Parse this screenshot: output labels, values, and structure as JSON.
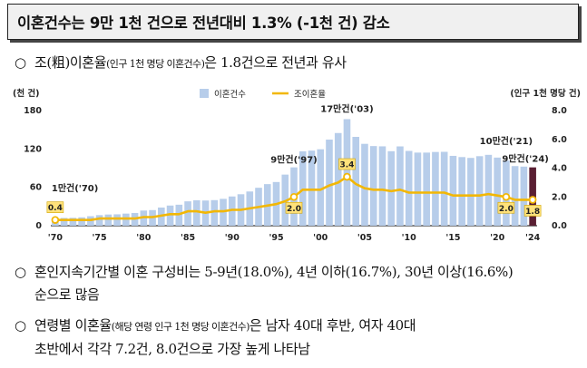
{
  "header": {
    "title": "이혼건수는 9만 1천 건으로 전년대비 1.3% (-1천 건) 감소"
  },
  "bullets": {
    "b1": {
      "marker": "○",
      "pre": "조(粗)이혼율",
      "small": "(인구 1천 명당 이혼건수)",
      "post": "은 1.8건으로 전년과 유사"
    },
    "b2": {
      "marker": "○",
      "line1": "혼인지속기간별 이혼 구성비는 5-9년(18.0%), 4년 이하(16.7%), 30년 이상(16.6%)",
      "line2": "순으로 많음"
    },
    "b3": {
      "marker": "○",
      "pre": "연령별 이혼율",
      "small": "(해당 연령 인구 1천 명당 이혼건수)",
      "post": "은 남자 40대 후반, 여자 40대",
      "line2": "초반에서 각각 7.2건, 8.0건으로 가장 높게 나타남"
    }
  },
  "chart_data": {
    "type": "bar+line",
    "x": [
      1970,
      1971,
      1972,
      1973,
      1974,
      1975,
      1976,
      1977,
      1978,
      1979,
      1980,
      1981,
      1982,
      1983,
      1984,
      1985,
      1986,
      1987,
      1988,
      1989,
      1990,
      1991,
      1992,
      1993,
      1994,
      1995,
      1996,
      1997,
      1998,
      1999,
      2000,
      2001,
      2002,
      2003,
      2004,
      2005,
      2006,
      2007,
      2008,
      2009,
      2010,
      2011,
      2012,
      2013,
      2014,
      2015,
      2016,
      2017,
      2018,
      2019,
      2020,
      2021,
      2022,
      2023,
      2024
    ],
    "x_tick_labels": [
      "'70",
      "'75",
      "'80",
      "'85",
      "'90",
      "'95",
      "'00",
      "'05",
      "'10",
      "'15",
      "'20",
      "'24"
    ],
    "x_tick_years": [
      1970,
      1975,
      1980,
      1985,
      1990,
      1995,
      2000,
      2005,
      2010,
      2015,
      2020,
      2024
    ],
    "series": [
      {
        "name": "이혼건수",
        "kind": "bar",
        "axis": "left",
        "values": [
          11.6,
          12.1,
          12.3,
          13.1,
          14.8,
          16.5,
          17.5,
          17.8,
          18.9,
          19.9,
          23.7,
          24.4,
          28.4,
          31.5,
          32.8,
          38.1,
          39.8,
          39.4,
          40.0,
          42.0,
          45.7,
          49.2,
          53.5,
          59.3,
          65.0,
          68.3,
          79.9,
          91.2,
          116.3,
          117.4,
          119.5,
          134.6,
          144.9,
          166.6,
          138.9,
          128.0,
          124.5,
          124.1,
          116.5,
          124.0,
          116.9,
          114.3,
          114.3,
          115.3,
          115.5,
          109.2,
          107.3,
          106.0,
          108.7,
          110.8,
          106.5,
          101.7,
          93.2,
          92.4,
          91.2
        ]
      },
      {
        "name": "조이혼율",
        "kind": "line",
        "axis": "right",
        "values": [
          0.4,
          0.4,
          0.4,
          0.4,
          0.4,
          0.5,
          0.5,
          0.5,
          0.5,
          0.5,
          0.6,
          0.6,
          0.7,
          0.8,
          0.8,
          1.0,
          1.0,
          0.9,
          1.0,
          1.0,
          1.1,
          1.1,
          1.2,
          1.3,
          1.4,
          1.5,
          1.7,
          2.0,
          2.5,
          2.5,
          2.5,
          2.8,
          3.0,
          3.4,
          2.9,
          2.6,
          2.5,
          2.5,
          2.4,
          2.5,
          2.3,
          2.3,
          2.3,
          2.3,
          2.3,
          2.1,
          2.1,
          2.1,
          2.1,
          2.2,
          2.1,
          2.0,
          1.8,
          1.8,
          1.8
        ]
      }
    ],
    "highlight_bar_year": 2024,
    "highlight_bar_color": "#5a1f33",
    "bar_color": "#b7cdea",
    "line_color": "#f2b705",
    "left_axis": {
      "label": "(천 건)",
      "ticks": [
        0,
        60,
        120,
        180
      ],
      "ylim": [
        0,
        180
      ]
    },
    "right_axis": {
      "label": "(인구 1천 명당 건)",
      "ticks": [
        0.0,
        2.0,
        4.0,
        6.0,
        8.0
      ],
      "ylim": [
        0,
        8
      ]
    },
    "right_tick_labels": [
      "0.0",
      "2.0",
      "4.0",
      "6.0",
      "8.0"
    ],
    "legend": {
      "bar_label": "이혼건수",
      "line_label": "조이혼율",
      "placement": "top-center"
    },
    "bar_annotations": [
      {
        "year": 1970,
        "text": "1만건('70)"
      },
      {
        "year": 1997,
        "text": "9만건('97)"
      },
      {
        "year": 2003,
        "text": "17만건('03)"
      },
      {
        "year": 2021,
        "text": "10만건('21)"
      },
      {
        "year": 2024,
        "text": "9만건('24)"
      }
    ],
    "line_labels": [
      {
        "year": 1970,
        "text": "0.4"
      },
      {
        "year": 1997,
        "text": "2.0"
      },
      {
        "year": 2003,
        "text": "3.4"
      },
      {
        "year": 2021,
        "text": "2.0"
      },
      {
        "year": 2024,
        "text": "1.8"
      }
    ]
  }
}
